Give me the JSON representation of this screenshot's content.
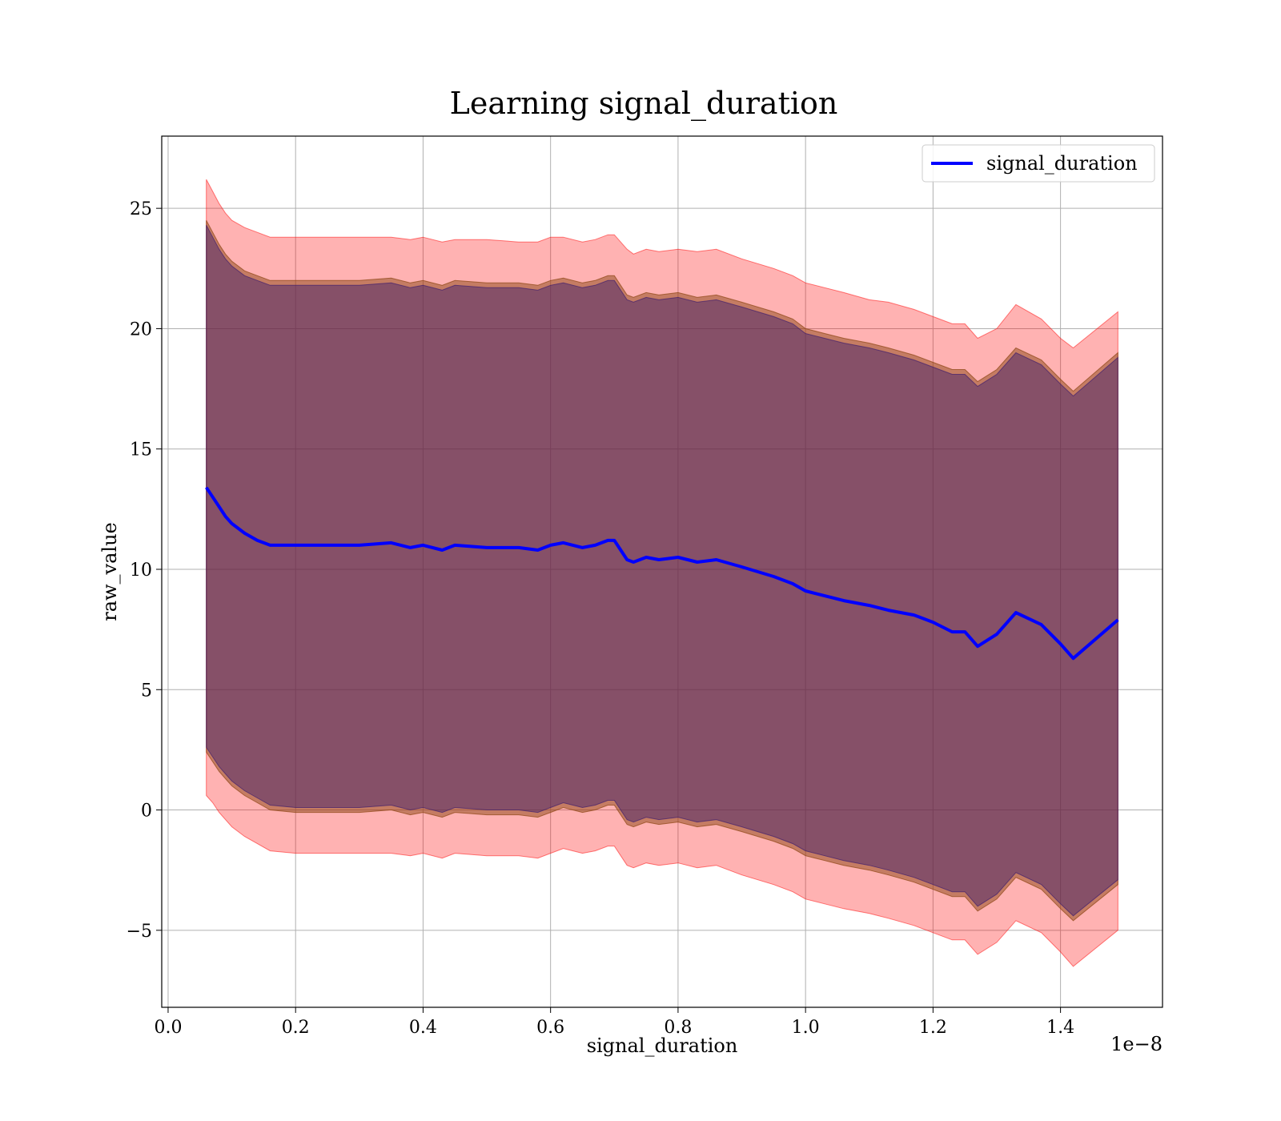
{
  "chart_data": {
    "type": "line",
    "title": "Learning signal_duration",
    "xlabel": "signal_duration",
    "ylabel": "raw_value",
    "x_offset_label": "1e−8",
    "xlim": [
      -0.01,
      1.56
    ],
    "ylim": [
      -8.2,
      28.0
    ],
    "x_ticks": [
      0.0,
      0.2,
      0.4,
      0.6,
      0.8,
      1.0,
      1.2,
      1.4
    ],
    "x_tick_labels": [
      "0.0",
      "0.2",
      "0.4",
      "0.6",
      "0.8",
      "1.0",
      "1.2",
      "1.4"
    ],
    "y_ticks": [
      -5,
      0,
      5,
      10,
      15,
      20,
      25
    ],
    "y_tick_labels": [
      "−5",
      "0",
      "5",
      "10",
      "15",
      "20",
      "25"
    ],
    "grid": true,
    "legend_position": "top-right",
    "colors": {
      "line": "#0000ff",
      "outer_band": "#ff0000",
      "middle_band": "#8b4513",
      "inner_band": "#3a1a6e"
    },
    "series": [
      {
        "name": "signal_duration",
        "x": [
          0.06,
          0.07,
          0.08,
          0.09,
          0.1,
          0.12,
          0.14,
          0.16,
          0.2,
          0.25,
          0.3,
          0.35,
          0.38,
          0.4,
          0.43,
          0.45,
          0.5,
          0.55,
          0.58,
          0.6,
          0.62,
          0.65,
          0.67,
          0.69,
          0.7,
          0.72,
          0.73,
          0.75,
          0.77,
          0.8,
          0.83,
          0.86,
          0.9,
          0.95,
          0.98,
          1.0,
          1.03,
          1.06,
          1.1,
          1.13,
          1.17,
          1.2,
          1.23,
          1.25,
          1.27,
          1.3,
          1.33,
          1.37,
          1.4,
          1.42,
          1.49
        ],
        "y": [
          13.4,
          13.0,
          12.6,
          12.2,
          11.9,
          11.5,
          11.2,
          11.0,
          11.0,
          11.0,
          11.0,
          11.1,
          10.9,
          11.0,
          10.8,
          11.0,
          10.9,
          10.9,
          10.8,
          11.0,
          11.1,
          10.9,
          11.0,
          11.2,
          11.2,
          10.4,
          10.3,
          10.5,
          10.4,
          10.5,
          10.3,
          10.4,
          10.1,
          9.7,
          9.4,
          9.1,
          8.9,
          8.7,
          8.5,
          8.3,
          8.1,
          7.8,
          7.4,
          7.4,
          6.8,
          7.3,
          8.2,
          7.7,
          6.9,
          6.3,
          7.9
        ]
      }
    ],
    "bands": [
      {
        "label": "outer",
        "upper": [
          26.2,
          25.7,
          25.2,
          24.8,
          24.5,
          24.2,
          24.0,
          23.8,
          23.8,
          23.8,
          23.8,
          23.8,
          23.7,
          23.8,
          23.6,
          23.7,
          23.7,
          23.6,
          23.6,
          23.8,
          23.8,
          23.6,
          23.7,
          23.9,
          23.9,
          23.3,
          23.1,
          23.3,
          23.2,
          23.3,
          23.2,
          23.3,
          22.9,
          22.5,
          22.2,
          21.9,
          21.7,
          21.5,
          21.2,
          21.1,
          20.8,
          20.5,
          20.2,
          20.2,
          19.6,
          20.0,
          21.0,
          20.4,
          19.6,
          19.2,
          20.7
        ],
        "lower": [
          0.6,
          0.3,
          -0.1,
          -0.4,
          -0.7,
          -1.1,
          -1.4,
          -1.7,
          -1.8,
          -1.8,
          -1.8,
          -1.8,
          -1.9,
          -1.8,
          -2.0,
          -1.8,
          -1.9,
          -1.9,
          -2.0,
          -1.8,
          -1.6,
          -1.8,
          -1.7,
          -1.5,
          -1.5,
          -2.3,
          -2.4,
          -2.2,
          -2.3,
          -2.2,
          -2.4,
          -2.3,
          -2.7,
          -3.1,
          -3.4,
          -3.7,
          -3.9,
          -4.1,
          -4.3,
          -4.5,
          -4.8,
          -5.1,
          -5.4,
          -5.4,
          -6.0,
          -5.5,
          -4.6,
          -5.1,
          -5.9,
          -6.5,
          -5.0
        ]
      },
      {
        "label": "middle",
        "upper": [
          24.5,
          24.0,
          23.5,
          23.1,
          22.8,
          22.4,
          22.2,
          22.0,
          22.0,
          22.0,
          22.0,
          22.1,
          21.9,
          22.0,
          21.8,
          22.0,
          21.9,
          21.9,
          21.8,
          22.0,
          22.1,
          21.9,
          22.0,
          22.2,
          22.2,
          21.4,
          21.3,
          21.5,
          21.4,
          21.5,
          21.3,
          21.4,
          21.1,
          20.7,
          20.4,
          20.0,
          19.8,
          19.6,
          19.4,
          19.2,
          18.9,
          18.6,
          18.3,
          18.3,
          17.8,
          18.3,
          19.2,
          18.7,
          17.9,
          17.4,
          19.0
        ],
        "lower": [
          2.4,
          2.0,
          1.6,
          1.3,
          1.0,
          0.6,
          0.3,
          0.0,
          -0.1,
          -0.1,
          -0.1,
          0.0,
          -0.2,
          -0.1,
          -0.3,
          -0.1,
          -0.2,
          -0.2,
          -0.3,
          -0.1,
          0.1,
          -0.1,
          0.0,
          0.2,
          0.2,
          -0.6,
          -0.7,
          -0.5,
          -0.6,
          -0.5,
          -0.7,
          -0.6,
          -0.9,
          -1.3,
          -1.6,
          -1.9,
          -2.1,
          -2.3,
          -2.5,
          -2.7,
          -3.0,
          -3.3,
          -3.6,
          -3.6,
          -4.2,
          -3.7,
          -2.8,
          -3.3,
          -4.1,
          -4.6,
          -3.1
        ]
      },
      {
        "label": "inner",
        "upper": [
          24.3,
          23.8,
          23.3,
          22.9,
          22.6,
          22.2,
          22.0,
          21.8,
          21.8,
          21.8,
          21.8,
          21.9,
          21.7,
          21.8,
          21.6,
          21.8,
          21.7,
          21.7,
          21.6,
          21.8,
          21.9,
          21.7,
          21.8,
          22.0,
          22.0,
          21.2,
          21.1,
          21.3,
          21.2,
          21.3,
          21.1,
          21.2,
          20.9,
          20.5,
          20.2,
          19.8,
          19.6,
          19.4,
          19.2,
          19.0,
          18.7,
          18.4,
          18.1,
          18.1,
          17.6,
          18.1,
          19.0,
          18.5,
          17.7,
          17.2,
          18.8
        ],
        "lower": [
          2.6,
          2.2,
          1.8,
          1.5,
          1.2,
          0.8,
          0.5,
          0.2,
          0.1,
          0.1,
          0.1,
          0.2,
          0.0,
          0.1,
          -0.1,
          0.1,
          0.0,
          0.0,
          -0.1,
          0.1,
          0.3,
          0.1,
          0.2,
          0.4,
          0.4,
          -0.4,
          -0.5,
          -0.3,
          -0.4,
          -0.3,
          -0.5,
          -0.4,
          -0.7,
          -1.1,
          -1.4,
          -1.7,
          -1.9,
          -2.1,
          -2.3,
          -2.5,
          -2.8,
          -3.1,
          -3.4,
          -3.4,
          -4.0,
          -3.5,
          -2.6,
          -3.1,
          -3.9,
          -4.4,
          -2.9
        ]
      }
    ]
  }
}
